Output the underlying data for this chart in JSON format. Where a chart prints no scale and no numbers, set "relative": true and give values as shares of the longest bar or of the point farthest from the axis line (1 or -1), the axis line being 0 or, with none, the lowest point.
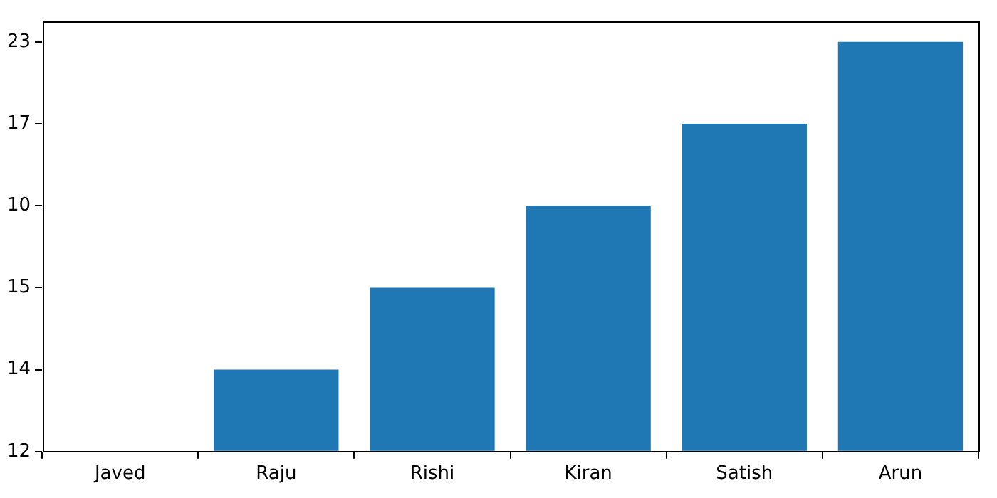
{
  "chart_data": {
    "type": "bar",
    "categories": [
      "Javed",
      "Raju",
      "Rishi",
      "Kiran",
      "Satish",
      "Arun"
    ],
    "y_categories": [
      "23",
      "17",
      "10",
      "15",
      "14",
      "12"
    ],
    "relative": true,
    "values": [
      0,
      0.2,
      0.4,
      0.6,
      0.8,
      1
    ],
    "color": "#1f77b4",
    "grid": false
  }
}
